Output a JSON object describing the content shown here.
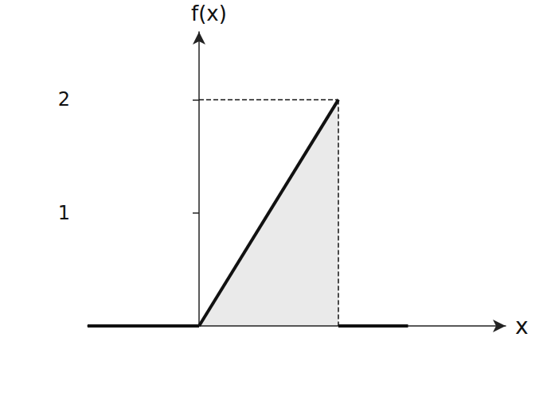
{
  "chart_data": {
    "type": "line",
    "x_label": "x",
    "y_label": "f(x)",
    "xlim": [
      -0.8,
      2.2
    ],
    "ylim": [
      0,
      2.6
    ],
    "yticks": [
      1,
      2
    ],
    "tick_labels": "y",
    "grid": false,
    "series": [
      {
        "x": [
          -0.8,
          0
        ],
        "values": [
          0,
          0
        ],
        "color": "#111111",
        "line_style": "solid",
        "type": "line"
      },
      {
        "x": [
          0,
          1
        ],
        "values": [
          0,
          2
        ],
        "color": "#111111",
        "line_style": "solid",
        "type": "area"
      },
      {
        "x": [
          1,
          1
        ],
        "values": [
          2,
          0
        ],
        "color": "#111111",
        "line_style": "dashed",
        "type": "line"
      },
      {
        "x": [
          1,
          1.5
        ],
        "values": [
          0,
          0
        ],
        "color": "#111111",
        "line_style": "solid",
        "type": "line"
      },
      {
        "x": [
          0,
          1
        ],
        "values": [
          2,
          2
        ],
        "color": "#111111",
        "line_style": "dashed",
        "type": "line"
      }
    ]
  }
}
